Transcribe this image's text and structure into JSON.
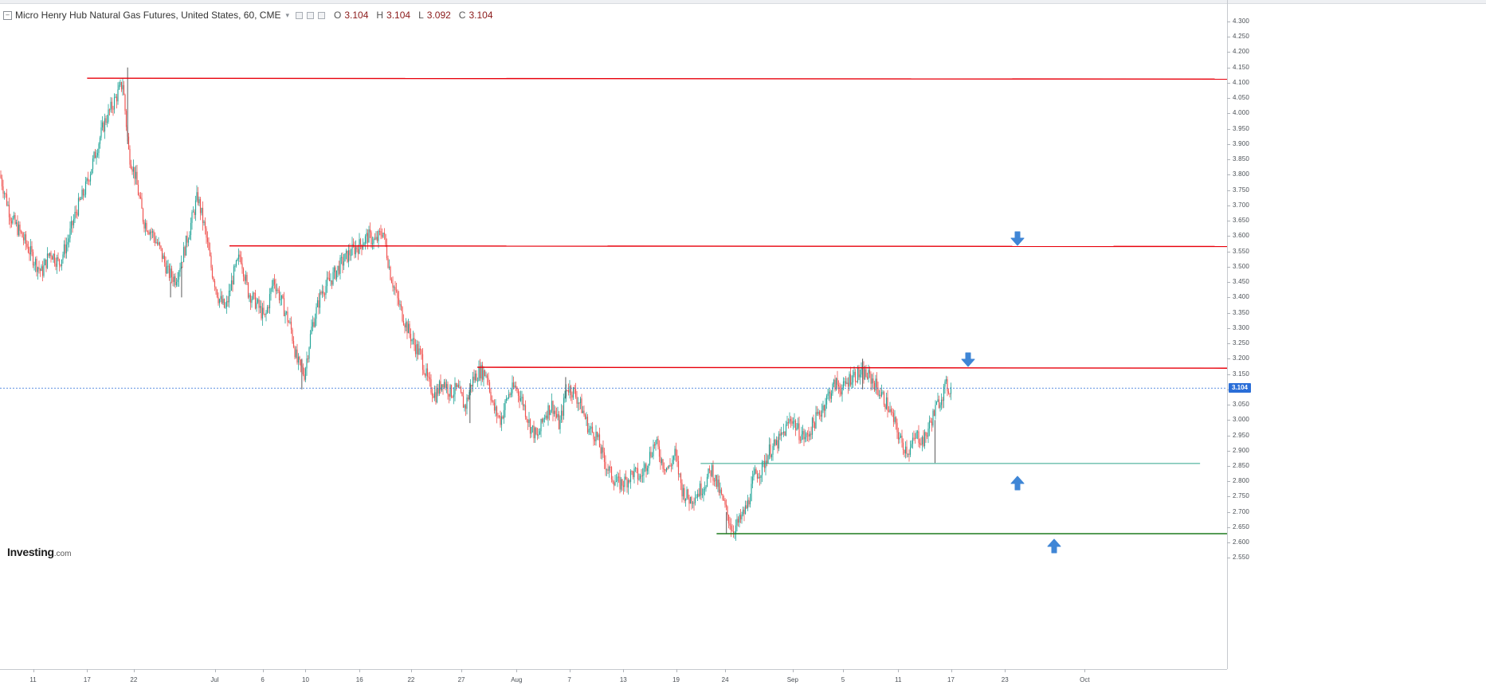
{
  "header": {
    "title": "Micro Henry Hub Natural Gas Futures, United States, 60, CME",
    "open_label": "O",
    "open_value": "3.104",
    "high_label": "H",
    "high_value": "3.104",
    "low_label": "L",
    "low_value": "3.092",
    "close_label": "C",
    "close_value": "3.104"
  },
  "logo": {
    "brand": "Investing",
    "suffix": ".com"
  },
  "price_tag": "3.104",
  "colors": {
    "up": "#26a69a",
    "down": "#ef5350",
    "resistance": "#e8000b",
    "support_light": "#2fa58a",
    "support_dark": "#1e7b1e",
    "current_price_line": "#2a6ed8",
    "arrow": "#3f86d6"
  },
  "chart_data": {
    "type": "candlestick",
    "instrument": "Micro Henry Hub Natural Gas Futures",
    "interval": "60",
    "ylim": [
      2.52,
      4.3
    ],
    "yticks": [
      "4.300",
      "4.250",
      "4.200",
      "4.150",
      "4.100",
      "4.050",
      "4.000",
      "3.950",
      "3.900",
      "3.850",
      "3.800",
      "3.750",
      "3.700",
      "3.650",
      "3.600",
      "3.550",
      "3.500",
      "3.450",
      "3.400",
      "3.350",
      "3.300",
      "3.250",
      "3.200",
      "3.150",
      "3.100",
      "3.050",
      "3.000",
      "2.950",
      "2.900",
      "2.850",
      "2.800",
      "2.750",
      "2.700",
      "2.650",
      "2.600",
      "2.550"
    ],
    "xticks": [
      {
        "label": "11",
        "frac": 0.027
      },
      {
        "label": "17",
        "frac": 0.071
      },
      {
        "label": "22",
        "frac": 0.109
      },
      {
        "label": "Jul",
        "frac": 0.175
      },
      {
        "label": "6",
        "frac": 0.214
      },
      {
        "label": "10",
        "frac": 0.249
      },
      {
        "label": "16",
        "frac": 0.293
      },
      {
        "label": "22",
        "frac": 0.335
      },
      {
        "label": "27",
        "frac": 0.376
      },
      {
        "label": "Aug",
        "frac": 0.421
      },
      {
        "label": "7",
        "frac": 0.464
      },
      {
        "label": "13",
        "frac": 0.508
      },
      {
        "label": "19",
        "frac": 0.551
      },
      {
        "label": "24",
        "frac": 0.591
      },
      {
        "label": "Sep",
        "frac": 0.646
      },
      {
        "label": "5",
        "frac": 0.687
      },
      {
        "label": "11",
        "frac": 0.732
      },
      {
        "label": "17",
        "frac": 0.775
      },
      {
        "label": "23",
        "frac": 0.819
      },
      {
        "label": "Oct",
        "frac": 0.884
      }
    ],
    "price_path": [
      [
        0.0,
        3.8
      ],
      [
        0.009,
        3.66
      ],
      [
        0.018,
        3.6
      ],
      [
        0.028,
        3.52
      ],
      [
        0.034,
        3.48
      ],
      [
        0.041,
        3.55
      ],
      [
        0.048,
        3.51
      ],
      [
        0.055,
        3.58
      ],
      [
        0.062,
        3.68
      ],
      [
        0.07,
        3.76
      ],
      [
        0.077,
        3.86
      ],
      [
        0.085,
        3.97
      ],
      [
        0.092,
        4.03
      ],
      [
        0.1,
        4.1
      ],
      [
        0.105,
        3.87
      ],
      [
        0.11,
        3.8
      ],
      [
        0.117,
        3.65
      ],
      [
        0.124,
        3.61
      ],
      [
        0.131,
        3.55
      ],
      [
        0.137,
        3.48
      ],
      [
        0.143,
        3.46
      ],
      [
        0.15,
        3.55
      ],
      [
        0.158,
        3.68
      ],
      [
        0.161,
        3.73
      ],
      [
        0.167,
        3.62
      ],
      [
        0.172,
        3.5
      ],
      [
        0.178,
        3.4
      ],
      [
        0.184,
        3.36
      ],
      [
        0.19,
        3.47
      ],
      [
        0.196,
        3.54
      ],
      [
        0.202,
        3.42
      ],
      [
        0.209,
        3.38
      ],
      [
        0.216,
        3.33
      ],
      [
        0.223,
        3.46
      ],
      [
        0.23,
        3.38
      ],
      [
        0.237,
        3.3
      ],
      [
        0.242,
        3.19
      ],
      [
        0.248,
        3.15
      ],
      [
        0.254,
        3.3
      ],
      [
        0.262,
        3.42
      ],
      [
        0.27,
        3.46
      ],
      [
        0.278,
        3.51
      ],
      [
        0.286,
        3.55
      ],
      [
        0.293,
        3.57
      ],
      [
        0.3,
        3.6
      ],
      [
        0.306,
        3.58
      ],
      [
        0.312,
        3.62
      ],
      [
        0.318,
        3.48
      ],
      [
        0.324,
        3.39
      ],
      [
        0.33,
        3.32
      ],
      [
        0.337,
        3.25
      ],
      [
        0.343,
        3.21
      ],
      [
        0.349,
        3.12
      ],
      [
        0.355,
        3.08
      ],
      [
        0.361,
        3.13
      ],
      [
        0.367,
        3.09
      ],
      [
        0.373,
        3.1
      ],
      [
        0.379,
        3.04
      ],
      [
        0.385,
        3.13
      ],
      [
        0.391,
        3.16
      ],
      [
        0.397,
        3.15
      ],
      [
        0.402,
        3.04
      ],
      [
        0.408,
        3.0
      ],
      [
        0.414,
        3.08
      ],
      [
        0.42,
        3.11
      ],
      [
        0.426,
        3.06
      ],
      [
        0.432,
        2.98
      ],
      [
        0.438,
        2.94
      ],
      [
        0.444,
        3.02
      ],
      [
        0.45,
        3.05
      ],
      [
        0.456,
        2.98
      ],
      [
        0.462,
        3.11
      ],
      [
        0.468,
        3.09
      ],
      [
        0.474,
        3.04
      ],
      [
        0.48,
        2.97
      ],
      [
        0.486,
        2.95
      ],
      [
        0.492,
        2.87
      ],
      [
        0.498,
        2.82
      ],
      [
        0.504,
        2.79
      ],
      [
        0.51,
        2.8
      ],
      [
        0.516,
        2.83
      ],
      [
        0.522,
        2.81
      ],
      [
        0.528,
        2.87
      ],
      [
        0.534,
        2.93
      ],
      [
        0.54,
        2.86
      ],
      [
        0.545,
        2.84
      ],
      [
        0.55,
        2.89
      ],
      [
        0.556,
        2.77
      ],
      [
        0.562,
        2.74
      ],
      [
        0.568,
        2.76
      ],
      [
        0.574,
        2.79
      ],
      [
        0.58,
        2.84
      ],
      [
        0.586,
        2.77
      ],
      [
        0.592,
        2.7
      ],
      [
        0.597,
        2.64
      ],
      [
        0.603,
        2.67
      ],
      [
        0.609,
        2.72
      ],
      [
        0.615,
        2.82
      ],
      [
        0.621,
        2.84
      ],
      [
        0.627,
        2.9
      ],
      [
        0.633,
        2.92
      ],
      [
        0.639,
        2.96
      ],
      [
        0.645,
        3.01
      ],
      [
        0.651,
        2.96
      ],
      [
        0.657,
        2.94
      ],
      [
        0.663,
        2.99
      ],
      [
        0.669,
        3.03
      ],
      [
        0.675,
        3.08
      ],
      [
        0.681,
        3.12
      ],
      [
        0.687,
        3.1
      ],
      [
        0.693,
        3.14
      ],
      [
        0.699,
        3.15
      ],
      [
        0.705,
        3.15
      ],
      [
        0.711,
        3.13
      ],
      [
        0.717,
        3.09
      ],
      [
        0.723,
        3.05
      ],
      [
        0.729,
        2.99
      ],
      [
        0.735,
        2.92
      ],
      [
        0.741,
        2.9
      ],
      [
        0.747,
        2.95
      ],
      [
        0.753,
        2.93
      ],
      [
        0.759,
        3.0
      ],
      [
        0.765,
        3.06
      ],
      [
        0.771,
        3.11
      ],
      [
        0.775,
        3.1
      ]
    ],
    "spikes": [
      {
        "frac": 0.104,
        "high": 4.15,
        "low": 3.9
      },
      {
        "frac": 0.139,
        "high": 3.45,
        "low": 3.4
      },
      {
        "frac": 0.148,
        "high": 3.5,
        "low": 3.4
      },
      {
        "frac": 0.246,
        "high": 3.2,
        "low": 3.1
      },
      {
        "frac": 0.383,
        "high": 3.12,
        "low": 2.99
      },
      {
        "frac": 0.461,
        "high": 3.14,
        "low": 3.07
      },
      {
        "frac": 0.592,
        "high": 2.7,
        "low": 2.63
      },
      {
        "frac": 0.703,
        "high": 3.2,
        "low": 3.1
      },
      {
        "frac": 0.762,
        "high": 3.0,
        "low": 2.86
      }
    ],
    "levels": [
      {
        "type": "resistance",
        "price": 4.115,
        "from": 0.071,
        "to": 1.0,
        "slope": -0.003
      },
      {
        "type": "resistance",
        "price": 3.568,
        "from": 0.187,
        "to": 1.0,
        "slope": -0.002
      },
      {
        "type": "resistance",
        "price": 3.172,
        "from": 0.389,
        "to": 1.0,
        "slope": -0.003
      },
      {
        "type": "support",
        "price": 2.858,
        "from": 0.571,
        "to": 0.978,
        "slope": 0
      },
      {
        "type": "support_strong",
        "price": 2.629,
        "from": 0.584,
        "to": 1.0,
        "slope": 0
      }
    ],
    "current_price": 3.104,
    "annotations": [
      {
        "type": "arrow-down",
        "frac": 0.829,
        "price": 3.59
      },
      {
        "type": "arrow-down",
        "frac": 0.789,
        "price": 3.195
      },
      {
        "type": "arrow-up",
        "frac": 0.829,
        "price": 2.795
      },
      {
        "type": "arrow-up",
        "frac": 0.859,
        "price": 2.59
      }
    ]
  }
}
